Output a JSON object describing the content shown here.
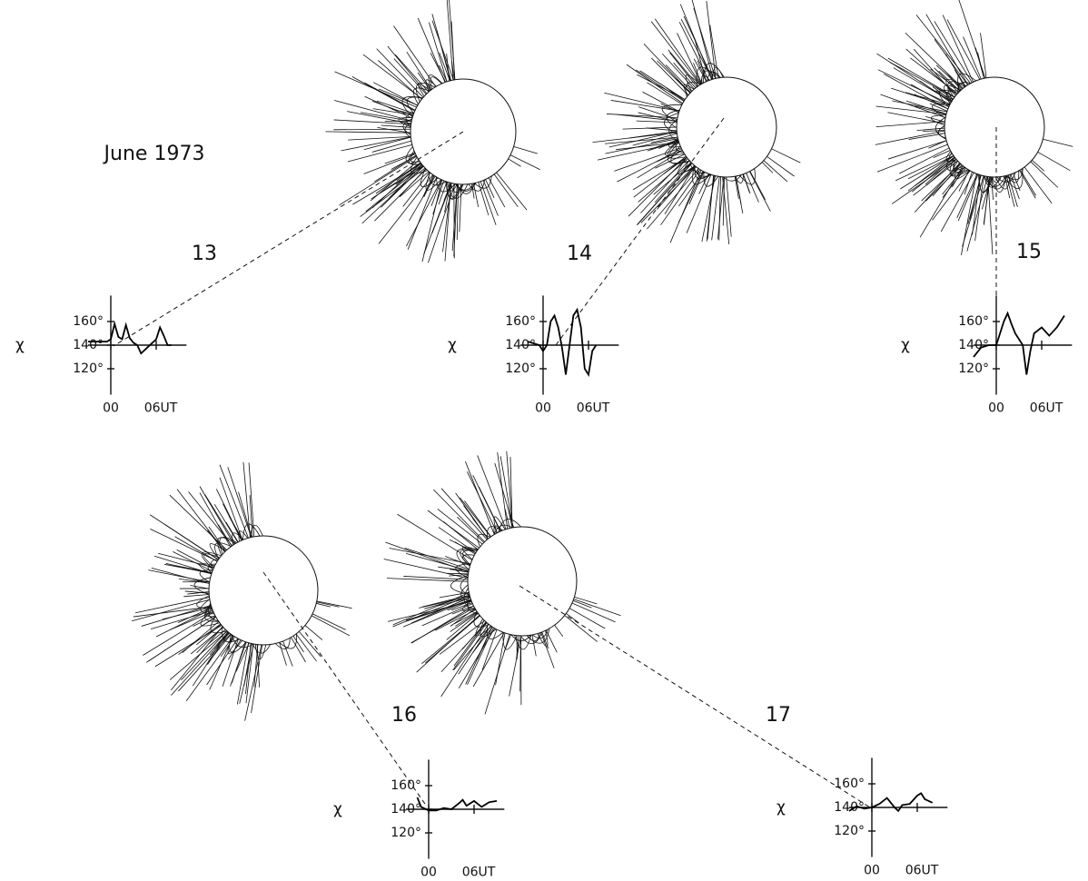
{
  "title": "June 1973",
  "chart_data": [
    {
      "type": "line",
      "title": "13",
      "ylabel": "χ",
      "color": "#000000",
      "x": [
        -3,
        -0.5,
        0,
        0.5,
        1,
        1.5,
        2,
        2.5,
        3,
        3.5,
        4,
        4.5,
        5,
        6,
        6.5,
        7,
        7.5,
        8
      ],
      "values": [
        143,
        143,
        145,
        158,
        147,
        145,
        157,
        146,
        142,
        140,
        133,
        136,
        139,
        145,
        155,
        148,
        140,
        140
      ],
      "xlim": [
        -3,
        10
      ],
      "ylim": [
        98,
        182
      ],
      "xticks": [
        {
          "value": 0,
          "label": "00"
        },
        {
          "value": 6,
          "label": "06UT"
        }
      ],
      "yticks": [
        {
          "value": 160,
          "label": "160°"
        },
        {
          "value": 140,
          "label": "140°"
        },
        {
          "value": 120,
          "label": "120°"
        }
      ]
    },
    {
      "type": "line",
      "title": "14",
      "ylabel": "χ",
      "color": "#000000",
      "x": [
        -2,
        -0.5,
        0,
        0.5,
        1,
        1.5,
        2,
        2.5,
        3,
        3.5,
        4,
        4.5,
        5,
        5.5,
        6,
        6.5,
        7
      ],
      "values": [
        143,
        140,
        135,
        140,
        160,
        165,
        155,
        138,
        115,
        140,
        165,
        170,
        155,
        120,
        115,
        135,
        140
      ],
      "xlim": [
        -3,
        10
      ],
      "ylim": [
        98,
        182
      ],
      "xticks": [
        {
          "value": 0,
          "label": "00"
        },
        {
          "value": 6,
          "label": "06UT"
        }
      ],
      "yticks": [
        {
          "value": 160,
          "label": "160°"
        },
        {
          "value": 140,
          "label": "140°"
        },
        {
          "value": 120,
          "label": "120°"
        }
      ]
    },
    {
      "type": "line",
      "title": "15",
      "ylabel": "χ",
      "color": "#000000",
      "x": [
        -3,
        -2,
        -1,
        0,
        0.5,
        1,
        1.5,
        2,
        2.5,
        3,
        3.5,
        4,
        4.5,
        5,
        6,
        7,
        8,
        9
      ],
      "values": [
        130,
        138,
        140,
        140,
        150,
        160,
        167,
        158,
        150,
        145,
        140,
        115,
        135,
        150,
        155,
        148,
        155,
        165
      ],
      "xlim": [
        -3,
        10
      ],
      "ylim": [
        98,
        182
      ],
      "xticks": [
        {
          "value": 0,
          "label": "00"
        },
        {
          "value": 6,
          "label": "06UT"
        }
      ],
      "yticks": [
        {
          "value": 160,
          "label": "160°"
        },
        {
          "value": 140,
          "label": "140°"
        },
        {
          "value": 120,
          "label": "120°"
        }
      ]
    },
    {
      "type": "line",
      "title": "16",
      "ylabel": "χ",
      "color": "#000000",
      "x": [
        -1.5,
        -1,
        0,
        1,
        2,
        3,
        4,
        4.5,
        5,
        6,
        7,
        8,
        9
      ],
      "values": [
        150,
        142,
        139,
        139,
        141,
        140,
        145,
        148,
        143,
        147,
        142,
        146,
        147
      ],
      "xlim": [
        -3,
        10
      ],
      "ylim": [
        98,
        182
      ],
      "xticks": [
        {
          "value": 0,
          "label": "00"
        },
        {
          "value": 6,
          "label": "06UT"
        }
      ],
      "yticks": [
        {
          "value": 160,
          "label": "160°"
        },
        {
          "value": 140,
          "label": "140°"
        },
        {
          "value": 120,
          "label": "120°"
        }
      ]
    },
    {
      "type": "line",
      "title": "17",
      "ylabel": "χ",
      "color": "#000000",
      "x": [
        -3,
        -2,
        -1,
        0,
        1,
        2,
        3,
        3.5,
        4,
        5,
        6,
        6.5,
        7,
        8
      ],
      "values": [
        137,
        141,
        139,
        140,
        143,
        148,
        140,
        137,
        142,
        143,
        150,
        152,
        147,
        144
      ],
      "xlim": [
        -3,
        10
      ],
      "ylim": [
        98,
        182
      ],
      "xticks": [
        {
          "value": 0,
          "label": "00"
        },
        {
          "value": 6,
          "label": "06UT"
        }
      ],
      "yticks": [
        {
          "value": 160,
          "label": "160°"
        },
        {
          "value": 140,
          "label": "140°"
        },
        {
          "value": 120,
          "label": "120°"
        }
      ]
    }
  ]
}
